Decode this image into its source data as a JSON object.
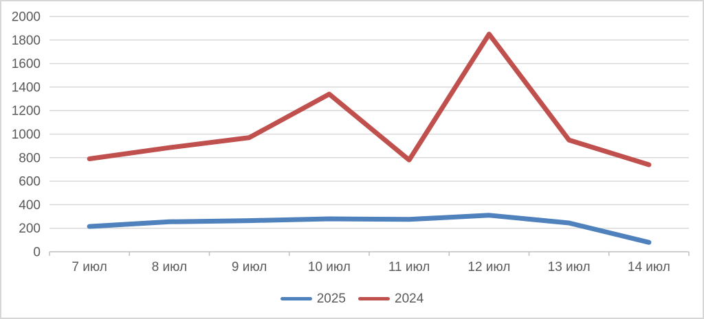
{
  "chart_data": {
    "type": "line",
    "title": "",
    "xlabel": "",
    "ylabel": "",
    "categories": [
      "7 июл",
      "8 июл",
      "9 июл",
      "10 июл",
      "11 июл",
      "12 июл",
      "13 июл",
      "14 июл"
    ],
    "series": [
      {
        "name": "2025",
        "color": "#4F81BD",
        "values": [
          215,
          255,
          265,
          280,
          275,
          310,
          245,
          80
        ]
      },
      {
        "name": "2024",
        "color": "#C0504D",
        "values": [
          790,
          885,
          970,
          1340,
          780,
          1850,
          950,
          740
        ]
      }
    ],
    "ylim": [
      0,
      2000
    ],
    "ytick_step": 200,
    "yticks": [
      0,
      200,
      400,
      600,
      800,
      1000,
      1200,
      1400,
      1600,
      1800,
      2000
    ],
    "grid": true,
    "legend_position": "bottom-center"
  },
  "styles": {
    "gridline_color": "#d9d9d9",
    "axis_color": "#bfbfbf",
    "text_color": "#595959",
    "background": "#ffffff",
    "border_color": "#d6d6d6"
  }
}
